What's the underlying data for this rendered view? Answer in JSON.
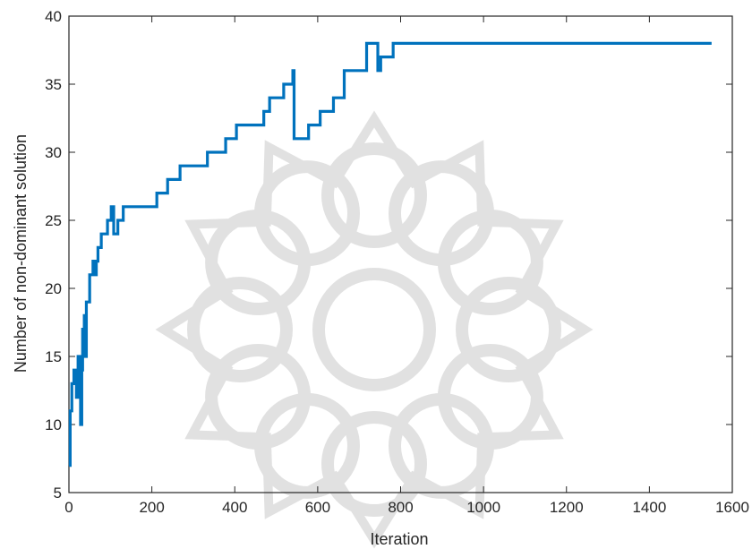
{
  "chart_data": {
    "type": "line",
    "title": "",
    "xlabel": "Iteration",
    "ylabel": "Number of non-dominant solution",
    "xlim": [
      0,
      1600
    ],
    "ylim": [
      5,
      40
    ],
    "xticks": [
      0,
      200,
      400,
      600,
      800,
      1000,
      1200,
      1400,
      1600
    ],
    "yticks": [
      5,
      10,
      15,
      20,
      25,
      30,
      35,
      40
    ],
    "grid": false,
    "legend": "none",
    "line_color": "#0072BD",
    "watermark": "grey rosette ornament behind the plot",
    "series": [
      {
        "x": [
          0,
          3,
          3,
          7,
          7,
          12,
          12,
          18,
          18,
          22,
          22,
          28,
          28,
          31,
          31,
          33,
          33,
          35,
          35,
          37,
          37,
          39,
          39,
          42,
          42,
          45,
          45,
          50,
          50,
          58,
          58,
          62,
          62,
          66,
          66,
          70,
          70,
          78,
          78,
          85,
          85,
          93,
          93,
          102,
          102,
          108,
          108,
          112,
          112,
          118,
          118,
          131,
          131,
          152,
          152,
          212,
          212,
          238,
          238,
          268,
          268,
          334,
          334,
          378,
          378,
          404,
          404,
          470,
          470,
          484,
          484,
          518,
          518,
          536,
          536,
          540,
          540,
          543,
          543,
          578,
          578,
          606,
          606,
          638,
          638,
          664,
          664,
          718,
          718,
          731,
          731,
          745,
          745,
          752,
          752,
          782,
          782,
          1550
        ],
        "y": [
          7,
          7,
          11,
          11,
          13,
          13,
          14,
          14,
          12,
          12,
          15,
          15,
          10,
          10,
          14,
          14,
          17,
          17,
          15,
          15,
          18,
          18,
          15,
          15,
          19,
          19,
          19,
          19,
          21,
          21,
          22,
          22,
          21,
          21,
          22,
          22,
          23,
          23,
          24,
          24,
          24,
          24,
          25,
          25,
          26,
          26,
          24,
          24,
          24,
          24,
          25,
          25,
          26,
          26,
          26,
          26,
          27,
          27,
          28,
          28,
          29,
          29,
          30,
          30,
          31,
          31,
          32,
          32,
          33,
          33,
          34,
          34,
          35,
          35,
          35,
          35,
          36,
          36,
          31,
          31,
          32,
          32,
          33,
          33,
          34,
          34,
          36,
          36,
          38,
          38,
          38,
          38,
          36,
          36,
          37,
          37,
          38,
          38
        ]
      }
    ]
  }
}
